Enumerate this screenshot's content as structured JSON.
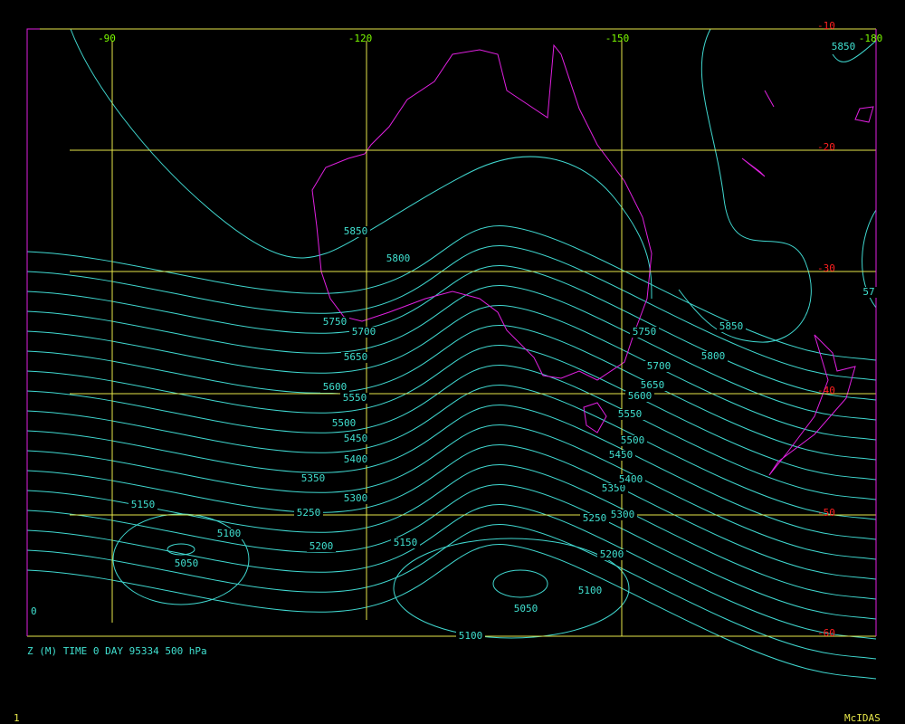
{
  "longitude_labels": [
    "-90",
    "-120",
    "-150",
    "-180"
  ],
  "latitude_labels": [
    "-10",
    "-20",
    "-30",
    "-40",
    "-50",
    "-60"
  ],
  "contour_labels": [
    "5850",
    "5800",
    "5750",
    "5700",
    "5650",
    "5600",
    "5550",
    "5500",
    "5450",
    "5400",
    "5350",
    "5300",
    "5250",
    "5200",
    "5150",
    "5100",
    "5050",
    "5150",
    "5100",
    "5050",
    "5100",
    "5200",
    "5250",
    "5300",
    "5350",
    "5400",
    "5450",
    "5500",
    "5550",
    "5600",
    "5650",
    "5700",
    "5750",
    "5800",
    "5850",
    "5850",
    "57"
  ],
  "corner_label": "0",
  "caption": "Z (M) TIME 0 DAY 95334 500 hPa",
  "frame_number": "1",
  "brand": "McIDAS"
}
